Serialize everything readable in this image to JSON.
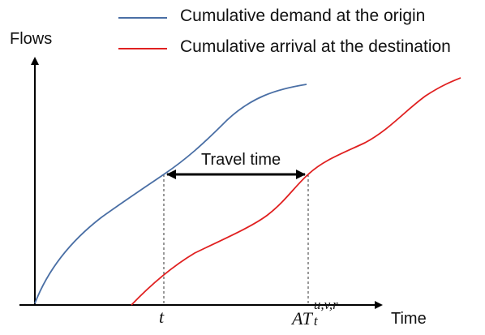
{
  "legend": [
    {
      "label": "Cumulative demand at the origin",
      "color": "#4a6fa5"
    },
    {
      "label": "Cumulative arrival at the destination",
      "color": "#e02020"
    }
  ],
  "axes": {
    "y_title": "Flows",
    "x_title": "Time"
  },
  "annotation": {
    "travel_time": "Travel time"
  },
  "ticks": {
    "t": "t",
    "at_base": "AT",
    "at_sub": "t",
    "at_sup": "u,v,r"
  },
  "colors": {
    "demand_curve": "#4a6fa5",
    "arrival_curve": "#e02020",
    "axis": "#000000"
  }
}
